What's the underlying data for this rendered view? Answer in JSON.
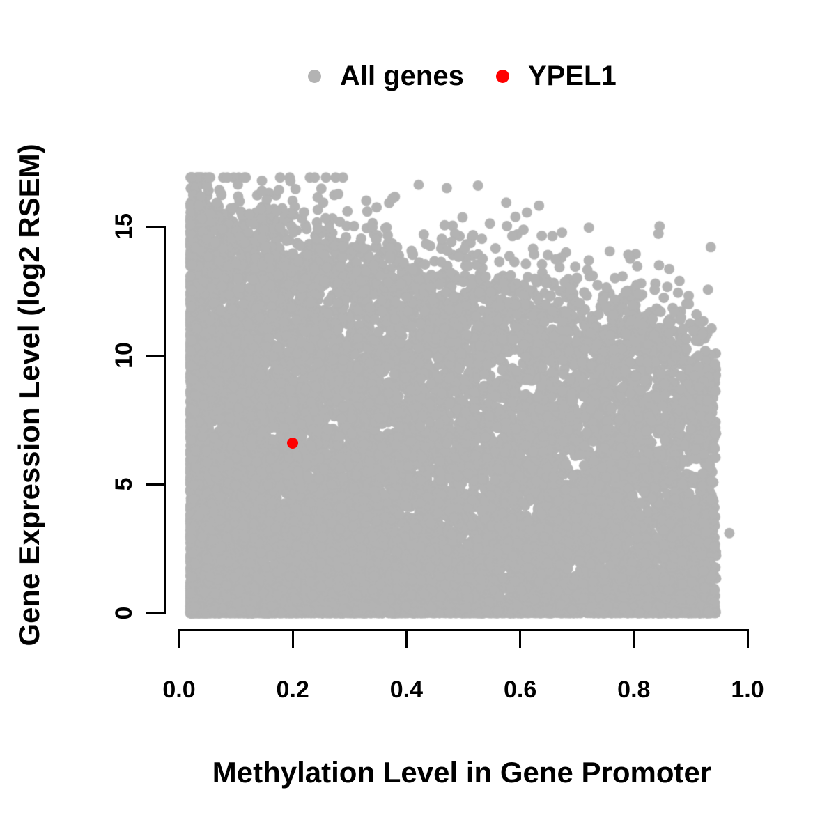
{
  "chart_data": {
    "type": "scatter",
    "title": "",
    "xlabel": "Methylation Level in Gene Promoter",
    "ylabel": "Gene Expression Level (log2 RSEM)",
    "xlim": [
      0.0,
      1.0
    ],
    "ylim": [
      0,
      17
    ],
    "grid": false,
    "axis_color": "#000000",
    "background_color": "#ffffff",
    "x_ticks": [
      {
        "value": 0.0,
        "label": "0.0"
      },
      {
        "value": 0.2,
        "label": "0.2"
      },
      {
        "value": 0.4,
        "label": "0.4"
      },
      {
        "value": 0.6,
        "label": "0.6"
      },
      {
        "value": 0.8,
        "label": "0.8"
      },
      {
        "value": 1.0,
        "label": "1.0"
      }
    ],
    "y_ticks": [
      {
        "value": 0,
        "label": "0"
      },
      {
        "value": 5,
        "label": "5"
      },
      {
        "value": 10,
        "label": "10"
      },
      {
        "value": 15,
        "label": "15"
      }
    ],
    "legend": {
      "position": "top-center",
      "items": [
        {
          "label": "All genes",
          "color": "#b3b3b3"
        },
        {
          "label": "YPEL1",
          "color": "#ff0000"
        }
      ]
    },
    "series": [
      {
        "name": "All genes",
        "color": "#b3b3b3",
        "marker": "filled-circle",
        "n_points": 16000,
        "distribution_note": "dense cloud; methylation 0.02-0.945, expression 0-16.9; upper envelope approx 15.8 - 5.2*x; heavy density near expression 0; sparse outliers above envelope",
        "generator": {
          "seed": 7,
          "n": 16000,
          "x_min": 0.02,
          "x_max": 0.945,
          "x_uniform_frac": 0.45,
          "x_skew": 2.0,
          "ymax_intercept": 15.8,
          "ymax_slope": -5.2,
          "ymax_noise": 0.7,
          "y_pow": 1.35,
          "bottom_frac": 0.14,
          "bottom_scale": 0.3,
          "outlier_frac": 0.015,
          "outlier_scale": 1.1,
          "y_cap": 16.9,
          "point_radius_px": 7.5
        },
        "extra_points": [
          [
            0.968,
            3.1
          ]
        ]
      },
      {
        "name": "YPEL1",
        "color": "#ff0000",
        "marker": "filled-circle",
        "points": [
          [
            0.2,
            6.6
          ]
        ]
      }
    ]
  }
}
